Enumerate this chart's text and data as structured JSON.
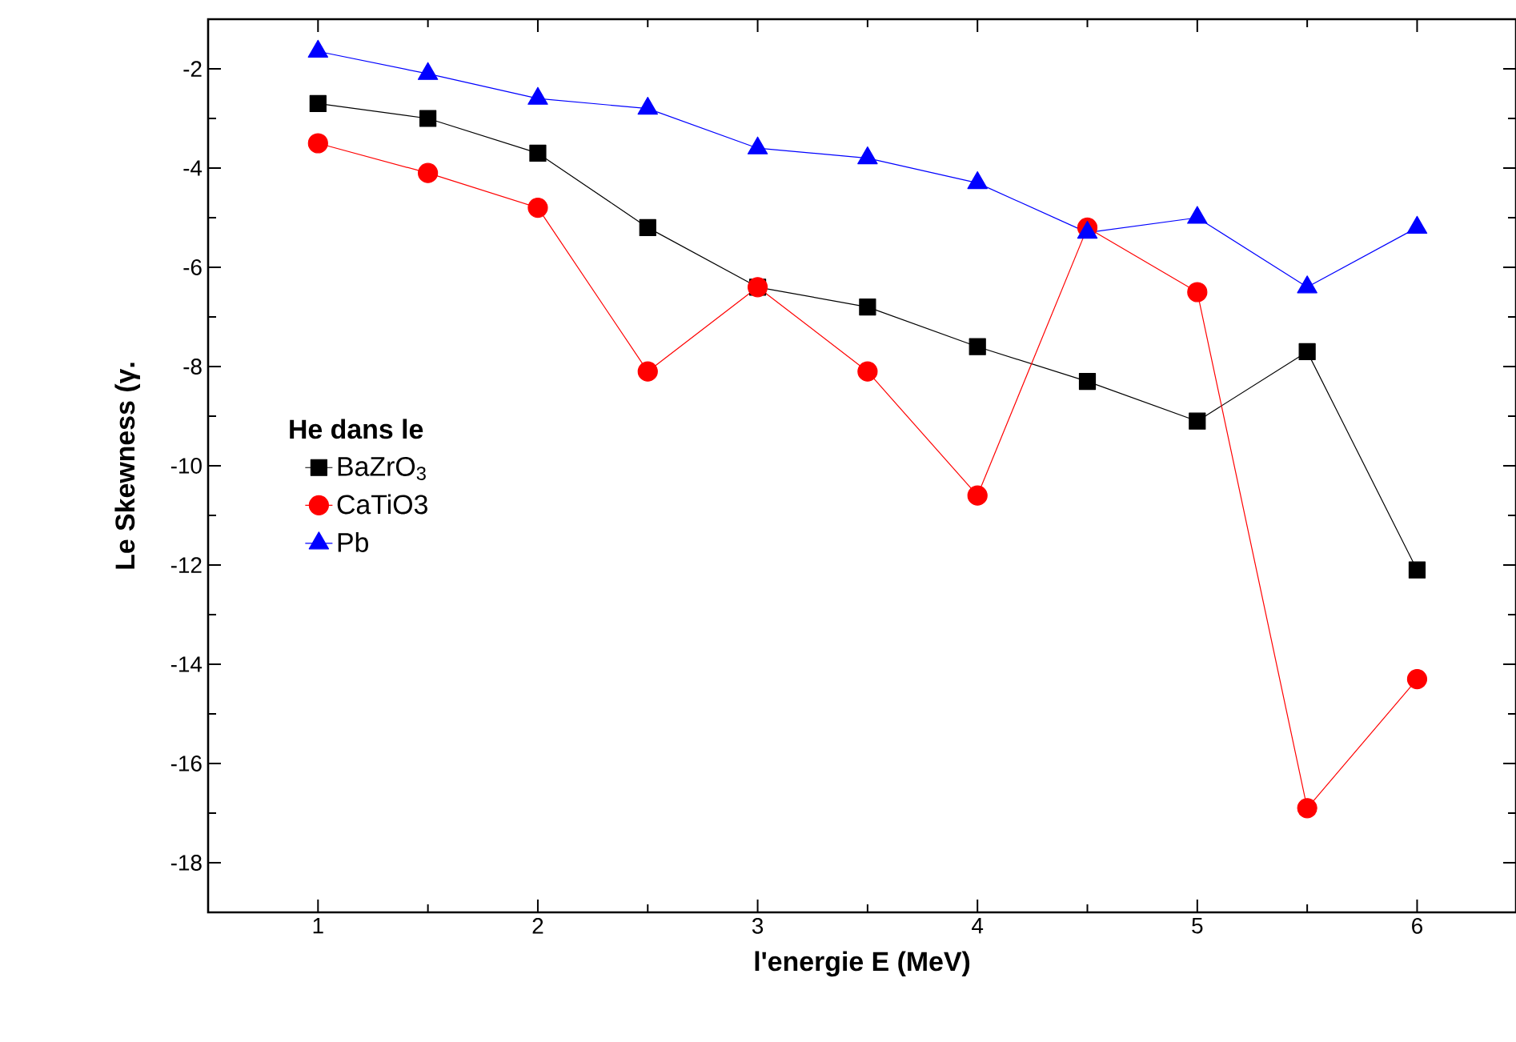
{
  "chart_data": {
    "type": "line",
    "xlabel": "l'energie E (MeV)",
    "ylabel": "Le Skewness (γ.",
    "legend_title": "He dans le",
    "legend": "left",
    "x": [
      1,
      1.5,
      2,
      2.5,
      3,
      3.5,
      4,
      4.5,
      5,
      5.5,
      6
    ],
    "series": [
      {
        "name": "BaZrO$_{3}$",
        "color": "#000000",
        "marker": "square",
        "values": [
          -2.7,
          -3.0,
          -3.7,
          -5.2,
          -6.4,
          -6.8,
          -7.6,
          -8.3,
          -9.1,
          -7.7,
          -12.1
        ]
      },
      {
        "name": "CaTiO3",
        "color": "#ff0000",
        "marker": "circle",
        "values": [
          -3.5,
          -4.1,
          -4.8,
          -8.1,
          -6.4,
          -8.1,
          -10.6,
          -5.2,
          -6.5,
          -16.9,
          -14.3
        ]
      },
      {
        "name": "Pb",
        "color": "#0000ff",
        "marker": "triangle",
        "values": [
          -1.65,
          -2.1,
          -2.6,
          -2.8,
          -3.6,
          -3.8,
          -4.3,
          -5.3,
          -5.0,
          -6.4,
          -5.2
        ]
      }
    ],
    "xlim": [
      0.5,
      6.45
    ],
    "ylim": [
      -19,
      -1
    ],
    "xticks": [
      1,
      2,
      3,
      4,
      5,
      6
    ],
    "yticks": [
      -18,
      -16,
      -14,
      -12,
      -10,
      -8,
      -6,
      -4,
      -2
    ]
  }
}
